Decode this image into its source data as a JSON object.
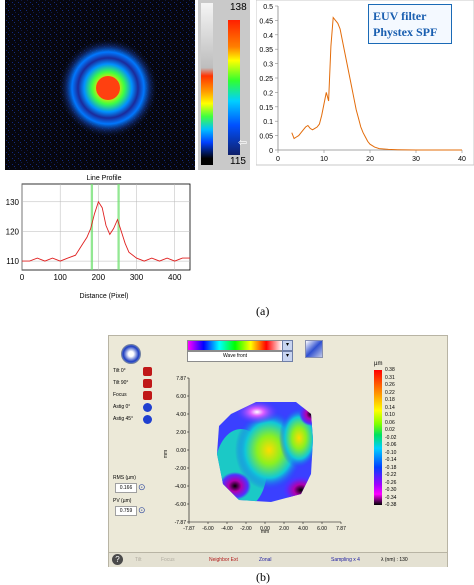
{
  "panel_a": {
    "colorbar": {
      "max_label": "138",
      "min_label": "115"
    },
    "legend_box": {
      "line1": "EUV filter",
      "line2": "Phystex SPF"
    },
    "line_profile": {
      "title": "Line Profile",
      "xlabel": "Distance (Pixel)"
    }
  },
  "panel_b": {
    "combo_top_value": "Wave front",
    "side_items": [
      "Tilt 0°",
      "Tilt 90°",
      "Focus",
      "Astig 0°",
      "Astig 45°"
    ],
    "rms_label": "RMS (µm)",
    "rms_value": "0.166",
    "pv_label": "PV (µm)",
    "pv_value": "0.759",
    "colorbar_unit": "µm",
    "colorbar_ticks": [
      "0.38",
      "0.31",
      "0.26",
      "0.22",
      "0.18",
      "0.14",
      "0.10",
      "0.06",
      "0.02",
      "-0.02",
      "-0.06",
      "-0.10",
      "-0.14",
      "-0.18",
      "-0.22",
      "-0.26",
      "-0.30",
      "-0.34",
      "-0.38"
    ],
    "x_axis_label": "mm",
    "y_axis_label": "mm",
    "status": {
      "tilt": "Tilt",
      "focus": "Focus",
      "neighbor": "Neighbor Ext",
      "zonal": "Zonal",
      "sampling": "Sampling x 4",
      "lambda": "λ (nm) : 130"
    }
  },
  "captions": {
    "a": "(a)",
    "b": "(b)"
  },
  "chart_data": [
    {
      "type": "line",
      "title": "",
      "xlabel": "",
      "ylabel": "",
      "xlim": [
        0,
        40
      ],
      "ylim": [
        0,
        0.5
      ],
      "x_ticks": [
        0,
        10,
        20,
        30,
        40
      ],
      "y_ticks": [
        0,
        0.05,
        0.1,
        0.15,
        0.2,
        0.25,
        0.3,
        0.35,
        0.4,
        0.45,
        0.5
      ],
      "grid": false,
      "series": [
        {
          "color": "#e36c0a",
          "x": [
            3,
            3.5,
            4,
            4.5,
            5,
            5.5,
            6,
            6.5,
            7,
            7.5,
            8,
            8.5,
            9,
            9.5,
            10,
            10.5,
            11,
            11.5,
            12,
            12.5,
            13,
            13.5,
            14,
            14.5,
            15,
            15.5,
            16,
            16.5,
            17,
            17.5,
            18,
            18.5,
            19,
            19.5,
            20,
            21,
            22,
            24,
            26,
            30,
            35,
            40
          ],
          "y": [
            0.06,
            0.04,
            0.045,
            0.05,
            0.06,
            0.07,
            0.08,
            0.085,
            0.075,
            0.07,
            0.075,
            0.08,
            0.09,
            0.12,
            0.16,
            0.2,
            0.17,
            0.36,
            0.46,
            0.45,
            0.44,
            0.42,
            0.38,
            0.34,
            0.3,
            0.26,
            0.22,
            0.18,
            0.14,
            0.11,
            0.08,
            0.06,
            0.045,
            0.03,
            0.02,
            0.01,
            0.005,
            0.002,
            0.001,
            0.0,
            0.0,
            0.0
          ]
        }
      ]
    },
    {
      "type": "line",
      "title": "Line Profile",
      "xlabel": "Distance (Pixel)",
      "ylabel": "",
      "xlim": [
        0,
        440
      ],
      "ylim": [
        107,
        136
      ],
      "x_ticks": [
        0,
        100,
        200,
        300,
        400
      ],
      "y_ticks": [
        110,
        120,
        130
      ],
      "grid": true,
      "series": [
        {
          "color": "#e02020",
          "x": [
            0,
            20,
            40,
            60,
            80,
            100,
            120,
            140,
            150,
            160,
            170,
            180,
            190,
            200,
            210,
            220,
            230,
            240,
            250,
            260,
            270,
            280,
            300,
            320,
            340,
            360,
            380,
            400,
            420,
            440
          ],
          "y": [
            110,
            110,
            111,
            110,
            111,
            110,
            111,
            112,
            114,
            116,
            118,
            121,
            126,
            130,
            128,
            122,
            119,
            121,
            124,
            120,
            116,
            113,
            111,
            110,
            111,
            110,
            111,
            110,
            111,
            111
          ]
        }
      ]
    }
  ]
}
